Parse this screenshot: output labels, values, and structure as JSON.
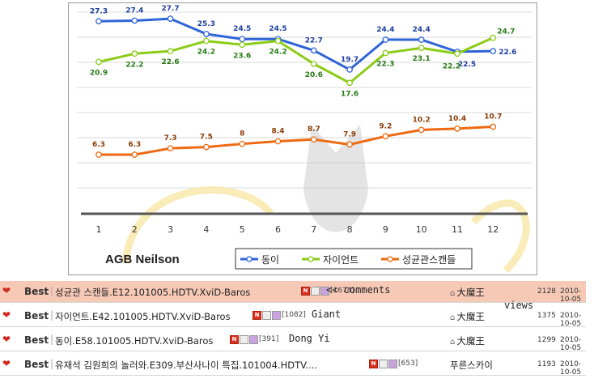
{
  "colors": {
    "series1": "#2f64d8",
    "series2": "#8ccc18",
    "series3": "#ee6a12",
    "label1": "#1e3f9e",
    "label2": "#267a12",
    "label3": "#8a3c06"
  },
  "chart_data": {
    "type": "line",
    "x": [
      1,
      2,
      3,
      4,
      5,
      6,
      7,
      8,
      9,
      10,
      11,
      12
    ],
    "series": [
      {
        "name": "동이",
        "values": [
          27.3,
          27.4,
          27.7,
          25.3,
          24.5,
          24.5,
          22.7,
          19.7,
          24.4,
          24.4,
          22.5,
          22.6
        ]
      },
      {
        "name": "자이언트",
        "values": [
          20.9,
          22.2,
          22.6,
          24.2,
          23.6,
          24.2,
          20.6,
          17.6,
          22.3,
          23.1,
          22.2,
          24.7
        ]
      },
      {
        "name": "성균관스캔들",
        "values": [
          6.3,
          6.3,
          7.3,
          7.5,
          8,
          8.4,
          8.7,
          7.9,
          9.2,
          10.2,
          10.4,
          10.7
        ]
      }
    ],
    "source_label": "AGB Neilson",
    "grid": "horizontal",
    "legend_position": "bottom-right"
  },
  "posts": [
    {
      "badge": "Best",
      "title": "성균관 스캔들.E12.101005.HDTV.XviD-Baros",
      "count": "[1674]",
      "note": "<< comments",
      "author": "大魔王",
      "views": "2128",
      "date": "2010-10-05",
      "highlight": true
    },
    {
      "badge": "Best",
      "title": "자이언트.E42.101005.HDTV.XviD-Baros",
      "count": "[1082]",
      "note": "Giant",
      "author": "大魔王",
      "views": "1375",
      "date": "2010-10-05",
      "highlight": false
    },
    {
      "badge": "Best",
      "title": "동이.E58.101005.HDTV.XviD-Baros",
      "count": "[391]",
      "note": "Dong Yi",
      "author": "大魔王",
      "views": "1299",
      "date": "2010-10-05",
      "highlight": false
    },
    {
      "badge": "Best",
      "title": "유재석 김원희의 놀러와.E309.부산사나이 특집.101004.HDTV....",
      "count": "[653]",
      "note": "",
      "author": "푸른스카이",
      "views": "1193",
      "date": "2010-10-05",
      "highlight": false
    }
  ],
  "annotations": {
    "views_label": "views"
  },
  "icons": {
    "heart": "heart-icon",
    "new": "new-badge-icon",
    "image": "image-file-icon",
    "file": "file-icon",
    "user": "user-icon"
  }
}
